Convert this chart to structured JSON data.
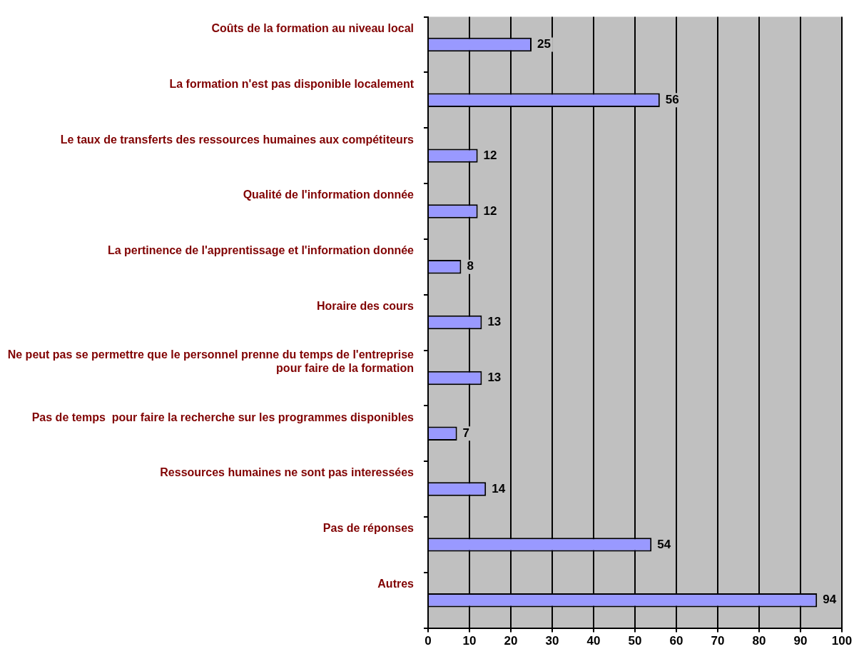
{
  "chart_data": {
    "type": "bar",
    "orientation": "horizontal",
    "categories": [
      "Coûts de la formation au niveau local",
      "La formation n'est pas disponible localement",
      "Le taux de transferts des ressources humaines aux compétiteurs",
      "Qualité de l'information donnée",
      "La pertinence de l'apprentissage et l'information donnée",
      "Horaire des cours",
      "Ne peut pas se permettre que le personnel prenne du temps de l'entreprise pour faire de la formation",
      "Pas de temps  pour faire la recherche sur les programmes disponibles",
      "Ressources humaines ne sont pas interessées",
      "Pas de réponses",
      "Autres"
    ],
    "values": [
      25,
      56,
      12,
      12,
      8,
      13,
      13,
      7,
      14,
      54,
      94
    ],
    "color": "#9999ff",
    "xlim": [
      0,
      100
    ],
    "xticks": [
      0,
      10,
      20,
      30,
      40,
      50,
      60,
      70,
      80,
      90,
      100
    ],
    "grid": "x",
    "legend": false,
    "data_labels": true
  }
}
